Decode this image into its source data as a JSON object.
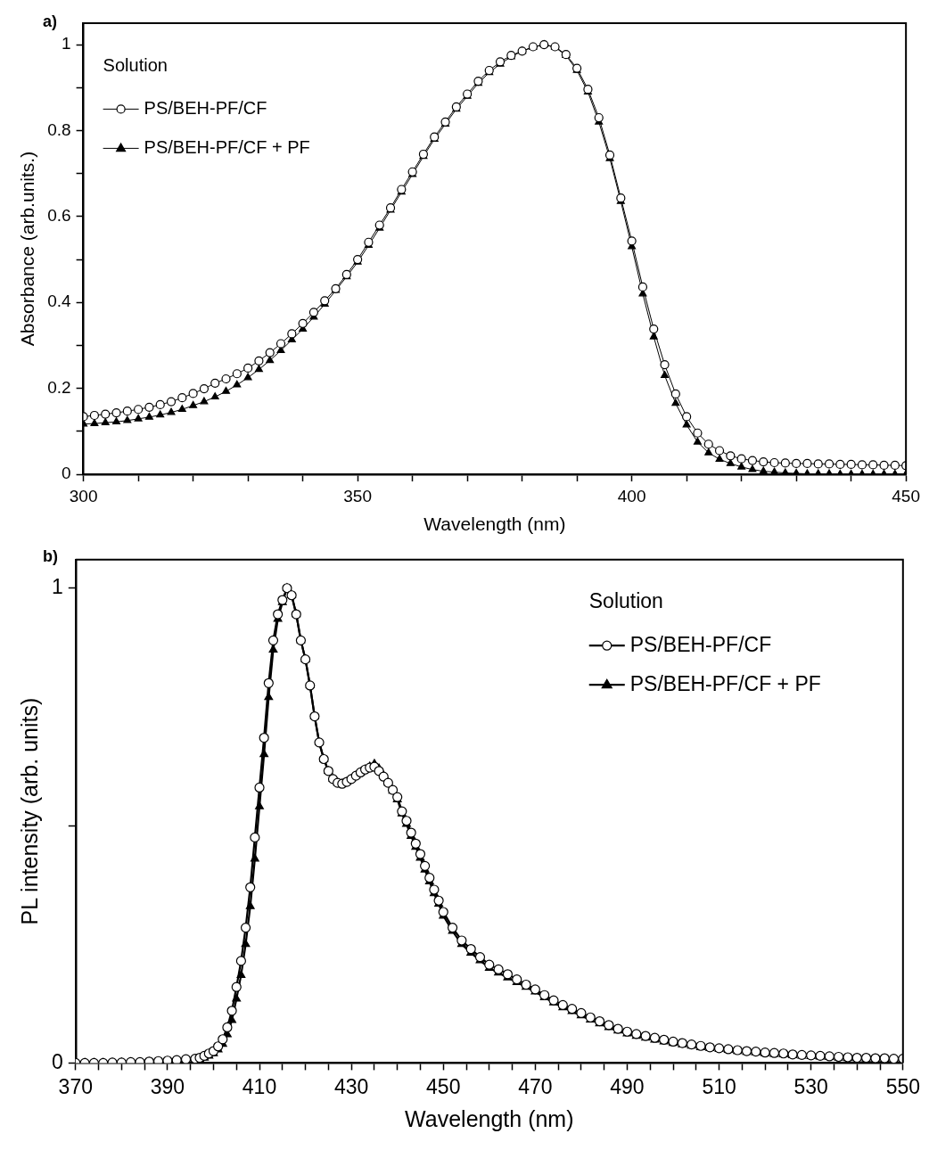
{
  "chart_data": [
    {
      "type": "line",
      "xlabel": "Wavelength (nm)",
      "ylabel": "Absorbance (arb.units.)",
      "legend_title": "Solution",
      "legend": "top left",
      "grid": false,
      "annotations": [
        "a)"
      ],
      "xlim": [
        300,
        450
      ],
      "ylim": [
        0,
        1.05
      ],
      "xticks": [
        300,
        {
          "value": 310,
          "label": null
        },
        {
          "value": 320,
          "label": null
        },
        {
          "value": 330,
          "label": null
        },
        {
          "value": 340,
          "label": null
        },
        350,
        {
          "value": 360,
          "label": null
        },
        {
          "value": 370,
          "label": null
        },
        {
          "value": 380,
          "label": null
        },
        {
          "value": 390,
          "label": null
        },
        400,
        {
          "value": 410,
          "label": null
        },
        {
          "value": 420,
          "label": null
        },
        {
          "value": 430,
          "label": null
        },
        {
          "value": 440,
          "label": null
        },
        450
      ],
      "yticks": [
        0,
        {
          "value": 0.1,
          "label": null
        },
        0.2,
        {
          "value": 0.3,
          "label": null
        },
        0.4,
        {
          "value": 0.5,
          "label": null
        },
        0.6,
        {
          "value": 0.7,
          "label": null
        },
        0.8,
        {
          "value": 0.9,
          "label": null
        },
        1
      ],
      "x": [
        300,
        302,
        304,
        306,
        308,
        310,
        312,
        314,
        316,
        318,
        320,
        322,
        324,
        326,
        328,
        330,
        332,
        334,
        336,
        338,
        340,
        342,
        344,
        346,
        348,
        350,
        352,
        354,
        356,
        358,
        360,
        362,
        364,
        366,
        368,
        370,
        372,
        374,
        376,
        378,
        380,
        382,
        384,
        386,
        388,
        390,
        392,
        394,
        396,
        398,
        400,
        402,
        404,
        406,
        408,
        410,
        412,
        414,
        416,
        418,
        420,
        422,
        424,
        426,
        428,
        430,
        432,
        434,
        436,
        438,
        440,
        442,
        444,
        446,
        448,
        450
      ],
      "series": [
        {
          "name": "PS/BEH-PF/CF",
          "color": "#000000",
          "marker": "circle",
          "values": [
            0.134,
            0.137,
            0.14,
            0.143,
            0.147,
            0.151,
            0.156,
            0.162,
            0.169,
            0.178,
            0.188,
            0.199,
            0.212,
            0.222,
            0.234,
            0.247,
            0.264,
            0.283,
            0.304,
            0.327,
            0.351,
            0.377,
            0.404,
            0.432,
            0.465,
            0.5,
            0.54,
            0.58,
            0.62,
            0.663,
            0.704,
            0.745,
            0.785,
            0.82,
            0.855,
            0.885,
            0.915,
            0.94,
            0.96,
            0.975,
            0.985,
            0.995,
            1.0,
            0.995,
            0.977,
            0.945,
            0.896,
            0.83,
            0.743,
            0.643,
            0.543,
            0.436,
            0.338,
            0.255,
            0.187,
            0.134,
            0.096,
            0.07,
            0.055,
            0.043,
            0.036,
            0.032,
            0.029,
            0.027,
            0.026,
            0.025,
            0.025,
            0.024,
            0.024,
            0.023,
            0.023,
            0.022,
            0.022,
            0.021,
            0.021,
            0.02
          ]
        },
        {
          "name": "PS/BEH-PF/CF + PF",
          "color": "#000000",
          "marker": "triangle",
          "values": [
            0.117,
            0.118,
            0.12,
            0.122,
            0.125,
            0.129,
            0.133,
            0.138,
            0.144,
            0.151,
            0.16,
            0.169,
            0.18,
            0.193,
            0.208,
            0.225,
            0.244,
            0.265,
            0.288,
            0.313,
            0.338,
            0.366,
            0.396,
            0.428,
            0.46,
            0.494,
            0.533,
            0.573,
            0.615,
            0.657,
            0.698,
            0.74,
            0.78,
            0.815,
            0.85,
            0.88,
            0.91,
            0.935,
            0.955,
            0.972,
            0.985,
            0.994,
            1.0,
            0.994,
            0.975,
            0.94,
            0.89,
            0.82,
            0.735,
            0.635,
            0.53,
            0.42,
            0.32,
            0.23,
            0.165,
            0.115,
            0.075,
            0.05,
            0.035,
            0.025,
            0.017,
            0.011,
            0.007,
            0.005,
            0.003,
            0.002,
            0.001,
            0.001,
            0.001,
            0,
            0,
            0,
            0,
            0,
            0,
            0
          ]
        }
      ]
    },
    {
      "type": "line",
      "xlabel": "Wavelength (nm)",
      "ylabel": "PL intensity (arb. units)",
      "legend_title": "Solution",
      "legend": "top right",
      "grid": false,
      "annotations": [
        "b)"
      ],
      "xlim": [
        370,
        550
      ],
      "ylim": [
        0,
        1.06
      ],
      "xticks": [
        370,
        {
          "value": 375,
          "label": null
        },
        {
          "value": 380,
          "label": null
        },
        {
          "value": 385,
          "label": null
        },
        390,
        {
          "value": 395,
          "label": null
        },
        {
          "value": 400,
          "label": null
        },
        {
          "value": 405,
          "label": null
        },
        410,
        {
          "value": 415,
          "label": null
        },
        {
          "value": 420,
          "label": null
        },
        {
          "value": 425,
          "label": null
        },
        430,
        {
          "value": 435,
          "label": null
        },
        {
          "value": 440,
          "label": null
        },
        {
          "value": 445,
          "label": null
        },
        450,
        {
          "value": 455,
          "label": null
        },
        {
          "value": 460,
          "label": null
        },
        {
          "value": 465,
          "label": null
        },
        470,
        {
          "value": 475,
          "label": null
        },
        {
          "value": 480,
          "label": null
        },
        {
          "value": 485,
          "label": null
        },
        490,
        {
          "value": 495,
          "label": null
        },
        {
          "value": 500,
          "label": null
        },
        {
          "value": 505,
          "label": null
        },
        510,
        {
          "value": 515,
          "label": null
        },
        {
          "value": 520,
          "label": null
        },
        {
          "value": 525,
          "label": null
        },
        530,
        {
          "value": 535,
          "label": null
        },
        {
          "value": 540,
          "label": null
        },
        {
          "value": 545,
          "label": null
        },
        550
      ],
      "yticks": [
        0,
        {
          "value": 0.5,
          "label": null
        },
        1
      ],
      "x": [
        370,
        372,
        374,
        376,
        378,
        380,
        382,
        384,
        386,
        388,
        390,
        392,
        394,
        396,
        397,
        398,
        399,
        400,
        401,
        402,
        403,
        404,
        405,
        406,
        407,
        408,
        409,
        410,
        411,
        412,
        413,
        414,
        415,
        416,
        417,
        418,
        419,
        420,
        421,
        422,
        423,
        424,
        425,
        426,
        427,
        428,
        429,
        430,
        431,
        432,
        433,
        434,
        435,
        436,
        437,
        438,
        439,
        440,
        441,
        442,
        443,
        444,
        445,
        446,
        447,
        448,
        449,
        450,
        452,
        454,
        456,
        458,
        460,
        462,
        464,
        466,
        468,
        470,
        472,
        474,
        476,
        478,
        480,
        482,
        484,
        486,
        488,
        490,
        492,
        494,
        496,
        498,
        500,
        502,
        504,
        506,
        508,
        510,
        512,
        514,
        516,
        518,
        520,
        522,
        524,
        526,
        528,
        530,
        532,
        534,
        536,
        538,
        540,
        542,
        544,
        546,
        548,
        550
      ],
      "series": [
        {
          "name": "PS/BEH-PF/CF",
          "color": "#000000",
          "marker": "circle",
          "values": [
            0,
            0,
            0,
            0,
            0.001,
            0.001,
            0.002,
            0.002,
            0.003,
            0.004,
            0.005,
            0.006,
            0.008,
            0.009,
            0.011,
            0.015,
            0.02,
            0.025,
            0.035,
            0.05,
            0.075,
            0.11,
            0.16,
            0.215,
            0.285,
            0.37,
            0.475,
            0.58,
            0.685,
            0.8,
            0.89,
            0.945,
            0.975,
            1.0,
            0.985,
            0.945,
            0.89,
            0.85,
            0.795,
            0.73,
            0.675,
            0.64,
            0.615,
            0.598,
            0.59,
            0.588,
            0.592,
            0.598,
            0.605,
            0.612,
            0.618,
            0.622,
            0.624,
            0.615,
            0.603,
            0.59,
            0.575,
            0.56,
            0.53,
            0.51,
            0.485,
            0.462,
            0.44,
            0.415,
            0.39,
            0.365,
            0.342,
            0.318,
            0.285,
            0.258,
            0.24,
            0.223,
            0.207,
            0.197,
            0.187,
            0.176,
            0.165,
            0.155,
            0.143,
            0.132,
            0.122,
            0.114,
            0.105,
            0.096,
            0.088,
            0.08,
            0.072,
            0.066,
            0.061,
            0.057,
            0.053,
            0.049,
            0.045,
            0.042,
            0.039,
            0.036,
            0.033,
            0.031,
            0.029,
            0.027,
            0.025,
            0.024,
            0.022,
            0.021,
            0.02,
            0.018,
            0.017,
            0.016,
            0.015,
            0.014,
            0.013,
            0.012,
            0.011,
            0.011,
            0.01,
            0.01,
            0.009,
            0.009
          ]
        },
        {
          "name": "PS/BEH-PF/CF + PF",
          "color": "#000000",
          "marker": "triangle",
          "values": [
            0,
            0,
            0,
            0,
            0,
            0.001,
            0.001,
            0.001,
            0.002,
            0.002,
            0.003,
            0.004,
            0.005,
            0.006,
            0.008,
            0.011,
            0.015,
            0.02,
            0.028,
            0.04,
            0.06,
            0.09,
            0.135,
            0.185,
            0.25,
            0.33,
            0.43,
            0.54,
            0.65,
            0.77,
            0.87,
            0.935,
            0.97,
            1.0,
            0.985,
            0.945,
            0.89,
            0.85,
            0.795,
            0.73,
            0.675,
            0.64,
            0.615,
            0.598,
            0.59,
            0.588,
            0.592,
            0.598,
            0.605,
            0.612,
            0.618,
            0.624,
            0.63,
            0.62,
            0.605,
            0.59,
            0.573,
            0.555,
            0.525,
            0.503,
            0.478,
            0.455,
            0.432,
            0.407,
            0.382,
            0.357,
            0.335,
            0.31,
            0.278,
            0.25,
            0.232,
            0.216,
            0.2,
            0.19,
            0.18,
            0.17,
            0.16,
            0.15,
            0.138,
            0.127,
            0.117,
            0.109,
            0.1,
            0.091,
            0.083,
            0.075,
            0.068,
            0.062,
            0.057,
            0.053,
            0.049,
            0.045,
            0.042,
            0.039,
            0.036,
            0.033,
            0.031,
            0.029,
            0.027,
            0.025,
            0.023,
            0.022,
            0.02,
            0.019,
            0.018,
            0.016,
            0.015,
            0.014,
            0.013,
            0.012,
            0.011,
            0.01,
            0.01,
            0.009,
            0.009,
            0.008,
            0.008,
            0.007
          ]
        }
      ]
    }
  ]
}
